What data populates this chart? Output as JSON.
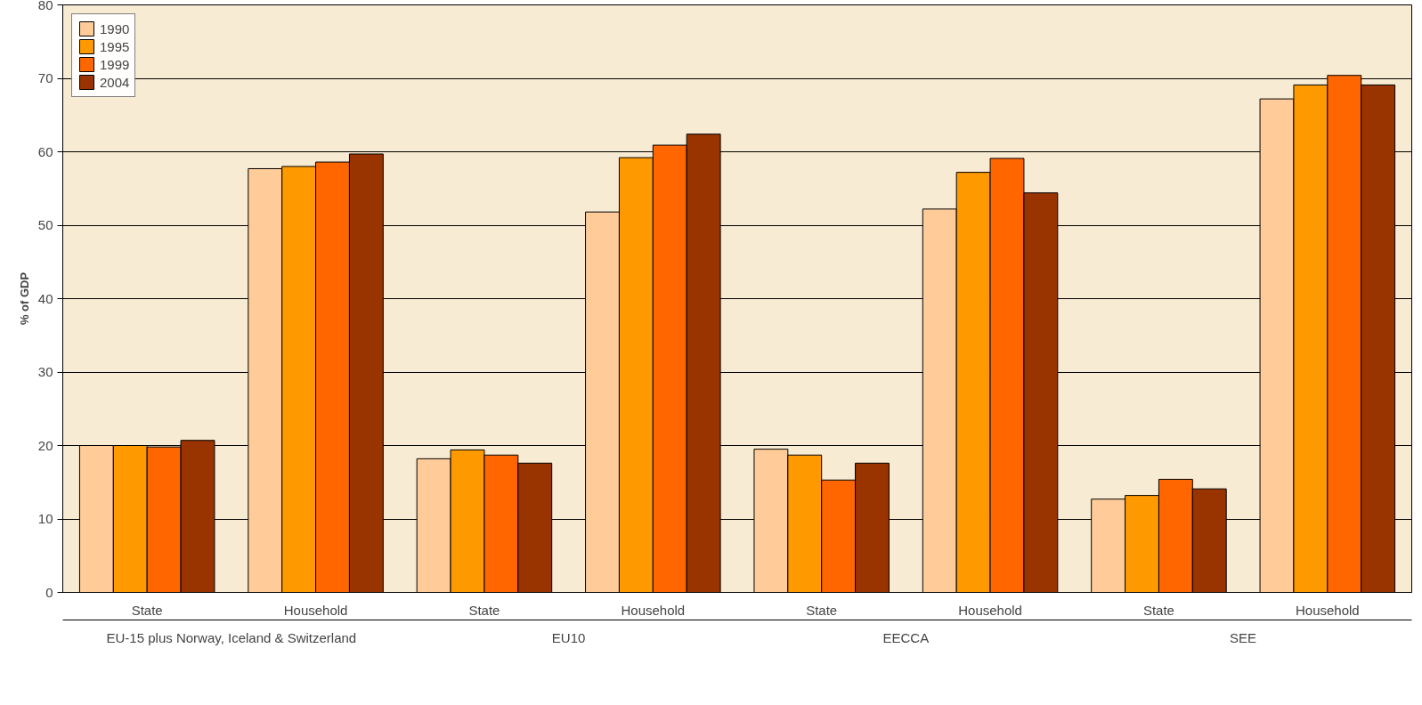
{
  "chart_data": {
    "type": "bar",
    "ylabel": "% of GDP",
    "categories": [
      "State",
      "Household",
      "State",
      "Household",
      "State",
      "Household",
      "State",
      "Household"
    ],
    "series": [
      {
        "name": "1990",
        "color": "#ffcc99",
        "values": [
          20.0,
          57.7,
          18.2,
          51.8,
          19.5,
          52.2,
          12.7,
          67.2
        ]
      },
      {
        "name": "1995",
        "color": "#ff9900",
        "values": [
          20.0,
          58.0,
          19.4,
          59.2,
          18.7,
          57.2,
          13.2,
          69.1
        ]
      },
      {
        "name": "1999",
        "color": "#ff6600",
        "values": [
          19.8,
          58.6,
          18.7,
          60.9,
          15.3,
          59.1,
          15.4,
          70.4
        ]
      },
      {
        "name": "2004",
        "color": "#993300",
        "values": [
          20.7,
          59.7,
          17.6,
          62.4,
          17.6,
          54.4,
          14.1,
          69.1
        ]
      }
    ],
    "annotations": [
      "EU-15 plus Norway, Iceland & Switzerland",
      "EU10",
      "EECCA",
      "SEE"
    ],
    "ylim": [
      0,
      80
    ],
    "yticks": [
      0,
      10,
      20,
      30,
      40,
      50,
      60,
      70,
      80
    ],
    "grid": "y",
    "legend": "top left"
  }
}
